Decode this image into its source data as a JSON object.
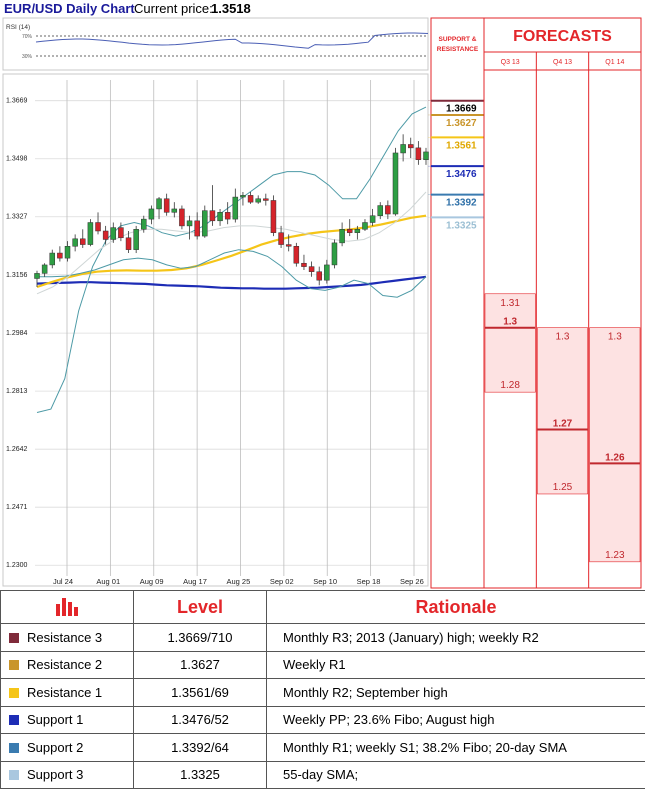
{
  "header": {
    "title": "EUR/USD Daily Chart",
    "price_label": "Current price:",
    "price": "1.3518"
  },
  "rsi": {
    "label": "RSI (14)",
    "ticks": [
      "70%",
      "30%"
    ]
  },
  "chart_data": [
    {
      "type": "candlestick",
      "title": "EUR/USD Daily Chart",
      "y_ticks": [
        "1.3669",
        "1.3498",
        "1.3327",
        "1.3156",
        "1.2984",
        "1.2813",
        "1.2642",
        "1.2471",
        "1.2300"
      ],
      "ylim": [
        1.228,
        1.373
      ],
      "x_ticks": [
        "Jul 24",
        "Aug 01",
        "Aug 09",
        "Aug 17",
        "Aug 25",
        "Sep 02",
        "Sep 10",
        "Sep 18",
        "Sep 26"
      ],
      "grid": true,
      "candles": [
        [
          1.3145,
          1.3168,
          1.312,
          1.316
        ],
        [
          1.316,
          1.319,
          1.315,
          1.3185
        ],
        [
          1.3185,
          1.323,
          1.3175,
          1.322
        ],
        [
          1.322,
          1.324,
          1.3195,
          1.3205
        ],
        [
          1.3205,
          1.3255,
          1.3195,
          1.324
        ],
        [
          1.324,
          1.3275,
          1.3225,
          1.3262
        ],
        [
          1.3262,
          1.329,
          1.3235,
          1.3245
        ],
        [
          1.3245,
          1.332,
          1.324,
          1.331
        ],
        [
          1.331,
          1.334,
          1.3275,
          1.3285
        ],
        [
          1.3285,
          1.33,
          1.3245,
          1.326
        ],
        [
          1.326,
          1.331,
          1.325,
          1.3295
        ],
        [
          1.3295,
          1.331,
          1.3255,
          1.3265
        ],
        [
          1.3265,
          1.3285,
          1.322,
          1.323
        ],
        [
          1.323,
          1.33,
          1.322,
          1.329
        ],
        [
          1.329,
          1.333,
          1.328,
          1.332
        ],
        [
          1.332,
          1.336,
          1.3305,
          1.335
        ],
        [
          1.335,
          1.3385,
          1.332,
          1.338
        ],
        [
          1.338,
          1.3395,
          1.333,
          1.334
        ],
        [
          1.334,
          1.337,
          1.3325,
          1.335
        ],
        [
          1.335,
          1.336,
          1.329,
          1.33
        ],
        [
          1.33,
          1.333,
          1.326,
          1.3315
        ],
        [
          1.3315,
          1.334,
          1.326,
          1.327
        ],
        [
          1.327,
          1.336,
          1.3265,
          1.3345
        ],
        [
          1.3345,
          1.342,
          1.33,
          1.3315
        ],
        [
          1.3315,
          1.335,
          1.33,
          1.334
        ],
        [
          1.334,
          1.337,
          1.3305,
          1.332
        ],
        [
          1.332,
          1.341,
          1.331,
          1.3385
        ],
        [
          1.3385,
          1.34,
          1.336,
          1.339
        ],
        [
          1.339,
          1.34,
          1.3365,
          1.337
        ],
        [
          1.337,
          1.339,
          1.3365,
          1.338
        ],
        [
          1.338,
          1.3395,
          1.336,
          1.3375
        ],
        [
          1.3375,
          1.339,
          1.327,
          1.328
        ],
        [
          1.328,
          1.33,
          1.3235,
          1.3245
        ],
        [
          1.3245,
          1.3275,
          1.3225,
          1.324
        ],
        [
          1.324,
          1.325,
          1.318,
          1.319
        ],
        [
          1.319,
          1.3215,
          1.317,
          1.318
        ],
        [
          1.318,
          1.3195,
          1.315,
          1.3165
        ],
        [
          1.3165,
          1.318,
          1.3125,
          1.314
        ],
        [
          1.314,
          1.32,
          1.313,
          1.3185
        ],
        [
          1.3185,
          1.326,
          1.3175,
          1.325
        ],
        [
          1.325,
          1.331,
          1.324,
          1.329
        ],
        [
          1.329,
          1.332,
          1.327,
          1.328
        ],
        [
          1.328,
          1.33,
          1.326,
          1.329
        ],
        [
          1.329,
          1.332,
          1.3285,
          1.331
        ],
        [
          1.331,
          1.335,
          1.33,
          1.333
        ],
        [
          1.333,
          1.337,
          1.332,
          1.336
        ],
        [
          1.336,
          1.3375,
          1.332,
          1.3335
        ],
        [
          1.3335,
          1.353,
          1.333,
          1.3515
        ],
        [
          1.3515,
          1.357,
          1.349,
          1.354
        ],
        [
          1.354,
          1.356,
          1.35,
          1.353
        ],
        [
          1.353,
          1.355,
          1.348,
          1.3495
        ],
        [
          1.3495,
          1.353,
          1.348,
          1.3518
        ]
      ],
      "series": [
        {
          "name": "",
          "color": "#1d2cb5",
          "y": [
            1.313,
            1.3131,
            1.3132,
            1.3133,
            1.3134,
            1.3134,
            1.3133,
            1.3132,
            1.3131,
            1.313,
            1.3129,
            1.3127,
            1.3125,
            1.3124,
            1.3123,
            1.3122,
            1.312,
            1.3118,
            1.3117,
            1.3116,
            1.3116,
            1.3115,
            1.3115,
            1.3115,
            1.3116,
            1.3117,
            1.3118,
            1.312,
            1.3122,
            1.3124,
            1.3126,
            1.313,
            1.3134,
            1.3138,
            1.3142,
            1.3146,
            1.315
          ]
        },
        {
          "name": "",
          "color": "#f5c518",
          "y": [
            1.312,
            1.3135,
            1.3148,
            1.3158,
            1.3165,
            1.3168,
            1.3169,
            1.3168,
            1.3168,
            1.317,
            1.3175,
            1.3185,
            1.3198,
            1.3212,
            1.3228,
            1.3245,
            1.3258,
            1.3268,
            1.3276,
            1.3282,
            1.3286,
            1.329,
            1.3296,
            1.3304,
            1.3314,
            1.3324,
            1.333
          ]
        },
        {
          "name": "",
          "color": "#4d9aa6",
          "y": [
            1.275,
            1.276,
            1.285,
            1.305,
            1.318,
            1.326,
            1.33,
            1.331,
            1.33,
            1.328,
            1.327,
            1.328,
            1.33,
            1.333,
            1.336,
            1.339,
            1.342,
            1.345,
            1.346,
            1.346,
            1.345,
            1.342,
            1.338,
            1.338,
            1.344,
            1.351,
            1.358,
            1.363,
            1.365
          ]
        },
        {
          "name": "",
          "color": "#4d9aa6",
          "y": [
            1.315,
            1.315,
            1.3152,
            1.316,
            1.317,
            1.3185,
            1.32,
            1.3205,
            1.32,
            1.3185,
            1.3175,
            1.318,
            1.32,
            1.322,
            1.323,
            1.3225,
            1.321,
            1.318,
            1.314,
            1.3115,
            1.311,
            1.312,
            1.314,
            1.313,
            1.3095,
            1.309,
            1.311,
            1.315
          ]
        },
        {
          "name": "",
          "color": "#cfd6d6",
          "y": [
            1.31,
            1.312,
            1.315,
            1.319,
            1.323,
            1.326,
            1.328,
            1.329,
            1.329,
            1.3285,
            1.328,
            1.3285,
            1.3295,
            1.33,
            1.33,
            1.3295,
            1.329,
            1.328,
            1.327,
            1.326,
            1.3255,
            1.326,
            1.328,
            1.331,
            1.335,
            1.34
          ]
        }
      ]
    },
    {
      "type": "table",
      "title": "FORECASTS",
      "support_header": "SUPPORT & RESISTANCE",
      "levels": [
        {
          "label": "1.3669",
          "value": 1.3669,
          "color": "#7f2a3a",
          "text_color": "#000000"
        },
        {
          "label": "1.3627",
          "value": 1.3627,
          "color": "#c9952b",
          "text_color": "#c9952b"
        },
        {
          "label": "1.3561",
          "value": 1.3561,
          "color": "#f5c518",
          "text_color": "#e0a800"
        },
        {
          "label": "1.3476",
          "value": 1.3476,
          "color": "#1d2cb5",
          "text_color": "#1d2cb5"
        },
        {
          "label": "1.3392",
          "value": 1.3392,
          "color": "#3a7bb0",
          "text_color": "#2d6fa7"
        },
        {
          "label": "1.3325",
          "value": 1.3325,
          "color": "#a9c7df",
          "text_color": "#9bbfd3"
        }
      ],
      "columns": [
        {
          "label": "Q3 13",
          "range": [
            1.281,
            1.31
          ],
          "high": "1.31",
          "target": "1.3",
          "low": "1.28",
          "target_value": 1.3
        },
        {
          "label": "Q4 13",
          "range": [
            1.251,
            1.3
          ],
          "high": "1.3",
          "target": "1.27",
          "low": "1.25",
          "target_value": 1.27
        },
        {
          "label": "Q1 14",
          "range": [
            1.231,
            1.3
          ],
          "high": "1.3",
          "target": "1.26",
          "low": "1.23",
          "target_value": 1.26
        }
      ]
    }
  ],
  "table": {
    "headers": {
      "level": "Level",
      "rationale": "Rationale"
    },
    "rows": [
      {
        "name": "Resistance 3",
        "color": "#7f2a3a",
        "level": "1.3669/710",
        "rationale": "Monthly R3; 2013 (January) high; weekly R2"
      },
      {
        "name": "Resistance 2",
        "color": "#c9952b",
        "level": "1.3627",
        "rationale": "Weekly R1"
      },
      {
        "name": "Resistance 1",
        "color": "#f5c518",
        "level": "1.3561/69",
        "rationale": "Monthly R2; September high"
      },
      {
        "name": "Support 1",
        "color": "#1d2cb5",
        "level": "1.3476/52",
        "rationale": "Weekly PP; 23.6% Fibo; August high"
      },
      {
        "name": "Support 2",
        "color": "#3a7bb0",
        "level": "1.3392/64",
        "rationale": "Monthly R1; weekly S1; 38.2% Fibo; 20-day SMA"
      },
      {
        "name": "Support 3",
        "color": "#a9c7df",
        "level": "1.3325",
        "rationale": "55-day SMA;"
      }
    ]
  },
  "colors": {
    "bull": "#2e9e44",
    "bear": "#d5242b",
    "accent": "#e3262a",
    "forecast_fill": "#fde2e2"
  }
}
